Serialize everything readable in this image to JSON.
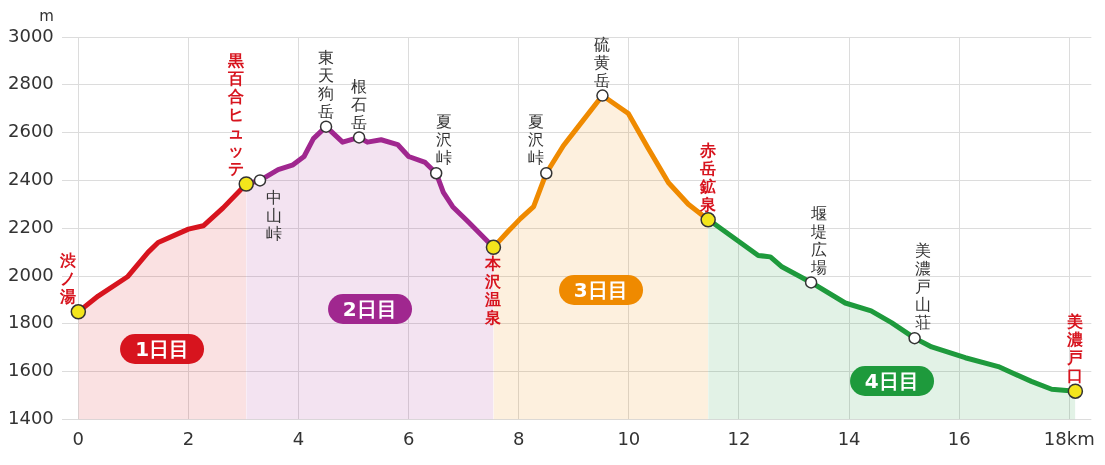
{
  "chart_data": {
    "type": "area",
    "ylabel": "m",
    "xlim": [
      -0.3,
      18.4
    ],
    "xticks": [
      0,
      2,
      4,
      6,
      8,
      10,
      12,
      14,
      16,
      {
        "value": 18,
        "label": "18km"
      }
    ],
    "ylim": [
      1400,
      3000
    ],
    "yticks": [
      1400,
      1600,
      1800,
      2000,
      2200,
      2400,
      2600,
      2800,
      3000
    ],
    "grid": true,
    "series": [
      {
        "name": "1日目",
        "color": "#d7141e",
        "x": [
          0,
          0.36,
          0.9,
          1.27,
          1.45,
          2.0,
          2.27,
          2.63,
          3.05
        ],
        "values": [
          1850,
          1916,
          1998,
          2100,
          2140,
          2196,
          2210,
          2285,
          2385
        ]
      },
      {
        "name": "2日目",
        "color": "#a0278f",
        "x": [
          3.05,
          3.3,
          3.63,
          3.9,
          4.1,
          4.27,
          4.5,
          4.8,
          5.1,
          5.25,
          5.5,
          5.8,
          6.0,
          6.3,
          6.5,
          6.63,
          6.8,
          7.09,
          7.54
        ],
        "values": [
          2385,
          2400,
          2445,
          2465,
          2500,
          2575,
          2625,
          2560,
          2580,
          2560,
          2570,
          2550,
          2500,
          2475,
          2430,
          2350,
          2290,
          2225,
          2120
        ]
      },
      {
        "name": "3日目",
        "color": "#ef8a00",
        "x": [
          7.54,
          7.8,
          8.03,
          8.27,
          8.5,
          8.81,
          9.08,
          9.52,
          9.99,
          10.35,
          10.72,
          11.08,
          11.44
        ],
        "values": [
          2120,
          2185,
          2240,
          2290,
          2430,
          2545,
          2625,
          2755,
          2680,
          2535,
          2390,
          2300,
          2235
        ]
      },
      {
        "name": "4日目",
        "color": "#1e9a3c",
        "x": [
          11.44,
          11.5,
          12.35,
          12.57,
          12.77,
          13.31,
          13.93,
          14.4,
          14.77,
          15.19,
          15.5,
          16.11,
          16.71,
          17.31,
          17.68,
          18.11
        ],
        "values": [
          2235,
          2227,
          2086,
          2080,
          2040,
          1973,
          1887,
          1854,
          1805,
          1740,
          1703,
          1658,
          1621,
          1559,
          1526,
          1518
        ]
      }
    ],
    "annotations": [
      {
        "text": "渋ノ湯",
        "x": 0,
        "y": 1850
      },
      {
        "text": "黒百合ヒュッテ",
        "x": 3.05,
        "y": 2385
      },
      {
        "text": "中山峠",
        "x": 3.3,
        "y": 2400
      },
      {
        "text": "東天狗岳",
        "x": 4.5,
        "y": 2625
      },
      {
        "text": "根石岳",
        "x": 5.1,
        "y": 2580
      },
      {
        "text": "夏沢峠",
        "x": 6.5,
        "y": 2430
      },
      {
        "text": "本沢温泉",
        "x": 7.54,
        "y": 2120
      },
      {
        "text": "夏沢峠",
        "x": 8.5,
        "y": 2430
      },
      {
        "text": "硫黄岳",
        "x": 9.52,
        "y": 2755
      },
      {
        "text": "赤岳鉱泉",
        "x": 11.44,
        "y": 2235
      },
      {
        "text": "堰堤広場",
        "x": 13.31,
        "y": 1973
      },
      {
        "text": "美濃戸山荘",
        "x": 15.19,
        "y": 1740
      },
      {
        "text": "美濃戸口",
        "x": 18.11,
        "y": 1518
      }
    ]
  }
}
